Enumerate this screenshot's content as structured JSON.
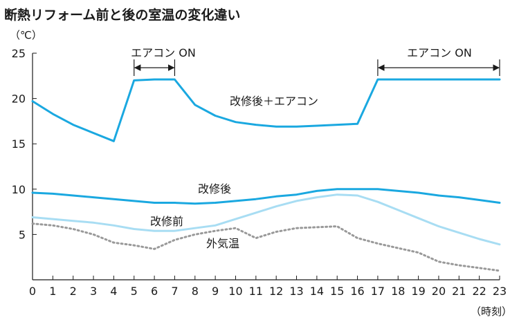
{
  "chart_data": {
    "type": "line",
    "title": "断熱リフォーム前と後の室温の変化違い",
    "ylabel": "（℃）",
    "xlabel": "（時刻）",
    "x": [
      0,
      1,
      2,
      3,
      4,
      5,
      6,
      7,
      8,
      9,
      10,
      11,
      12,
      13,
      14,
      15,
      16,
      17,
      18,
      19,
      20,
      21,
      22,
      23
    ],
    "xlim": [
      0,
      23
    ],
    "ylim": [
      0,
      25
    ],
    "yticks": [
      5,
      10,
      15,
      20,
      25
    ],
    "grid": false,
    "series": [
      {
        "name": "改修後＋エアコン",
        "color": "#1aa8e0",
        "style": "solid",
        "width": 3,
        "values": [
          19.7,
          18.3,
          17.1,
          16.2,
          15.3,
          22.0,
          22.1,
          22.1,
          19.3,
          18.1,
          17.4,
          17.1,
          16.9,
          16.9,
          17.0,
          17.1,
          17.2,
          22.1,
          22.1,
          22.1,
          22.1,
          22.1,
          22.1,
          22.1
        ]
      },
      {
        "name": "改修後",
        "color": "#1aa8e0",
        "style": "solid",
        "width": 3,
        "values": [
          9.6,
          9.5,
          9.3,
          9.1,
          8.9,
          8.7,
          8.5,
          8.5,
          8.4,
          8.5,
          8.7,
          8.9,
          9.2,
          9.4,
          9.8,
          10.0,
          10.0,
          10.0,
          9.8,
          9.6,
          9.3,
          9.1,
          8.8,
          8.5
        ]
      },
      {
        "name": "改修前",
        "color": "#a8ddf3",
        "style": "solid",
        "width": 3,
        "values": [
          6.9,
          6.7,
          6.5,
          6.3,
          6.0,
          5.6,
          5.4,
          5.4,
          5.7,
          6.0,
          6.7,
          7.4,
          8.1,
          8.7,
          9.1,
          9.4,
          9.3,
          8.6,
          7.7,
          6.8,
          5.9,
          5.2,
          4.5,
          3.9
        ]
      },
      {
        "name": "外気温",
        "color": "#999999",
        "style": "dotted",
        "width": 3,
        "values": [
          6.2,
          6.0,
          5.6,
          5.0,
          4.1,
          3.8,
          3.4,
          4.4,
          5.0,
          5.4,
          5.7,
          4.6,
          5.3,
          5.7,
          5.8,
          5.9,
          4.6,
          4.0,
          3.5,
          3.0,
          2.0,
          1.6,
          1.3,
          1.0
        ]
      }
    ],
    "annotations": [
      {
        "text": "エアコン ON",
        "from": 5,
        "to": 7
      },
      {
        "text": "エアコン ON",
        "from": 17,
        "to": 23
      }
    ]
  }
}
